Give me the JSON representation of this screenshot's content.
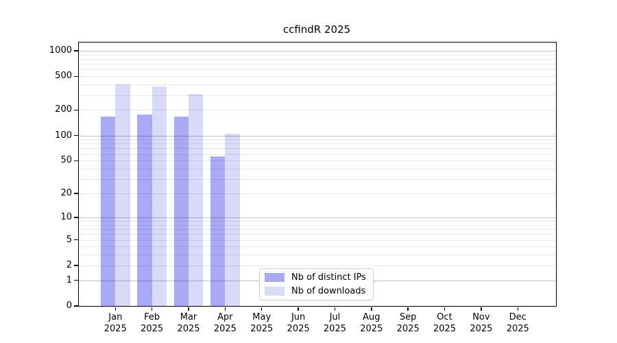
{
  "colors": {
    "ips": "#aaaaf4",
    "downloads": "#d9d9f8",
    "grid_minor": "rgba(0,0,0,0.085)",
    "grid_major": "rgba(0,0,0,0.24)",
    "spine": "#000000",
    "legend_border": "#cccccc"
  },
  "chart_data": {
    "type": "bar",
    "title": "ccfindR 2025",
    "categories": [
      "Jan",
      "Feb",
      "Mar",
      "Apr",
      "May",
      "Jun",
      "Jul",
      "Aug",
      "Sep",
      "Oct",
      "Nov",
      "Dec"
    ],
    "year_label": "2025",
    "series": [
      {
        "name": "Nb of distinct IPs",
        "color_key": "ips",
        "values": [
          168,
          178,
          168,
          56,
          null,
          null,
          null,
          null,
          null,
          null,
          null,
          null
        ]
      },
      {
        "name": "Nb of downloads",
        "color_key": "downloads",
        "values": [
          400,
          381,
          310,
          105,
          null,
          null,
          null,
          null,
          null,
          null,
          null,
          null
        ]
      }
    ],
    "y_scale": "log10(1+v)",
    "y_max": 1250,
    "ylim": [
      0,
      1250
    ],
    "y_ticks": [
      0,
      1,
      2,
      5,
      10,
      20,
      50,
      100,
      200,
      500,
      1000
    ],
    "y_grid_major": [
      1,
      10,
      100,
      1000
    ],
    "y_grid_minor": [
      2,
      3,
      4,
      5,
      6,
      7,
      8,
      9,
      20,
      30,
      40,
      50,
      60,
      70,
      80,
      90,
      200,
      300,
      400,
      500,
      600,
      700,
      800,
      900
    ],
    "grid": true,
    "legend_position": "lower center"
  }
}
